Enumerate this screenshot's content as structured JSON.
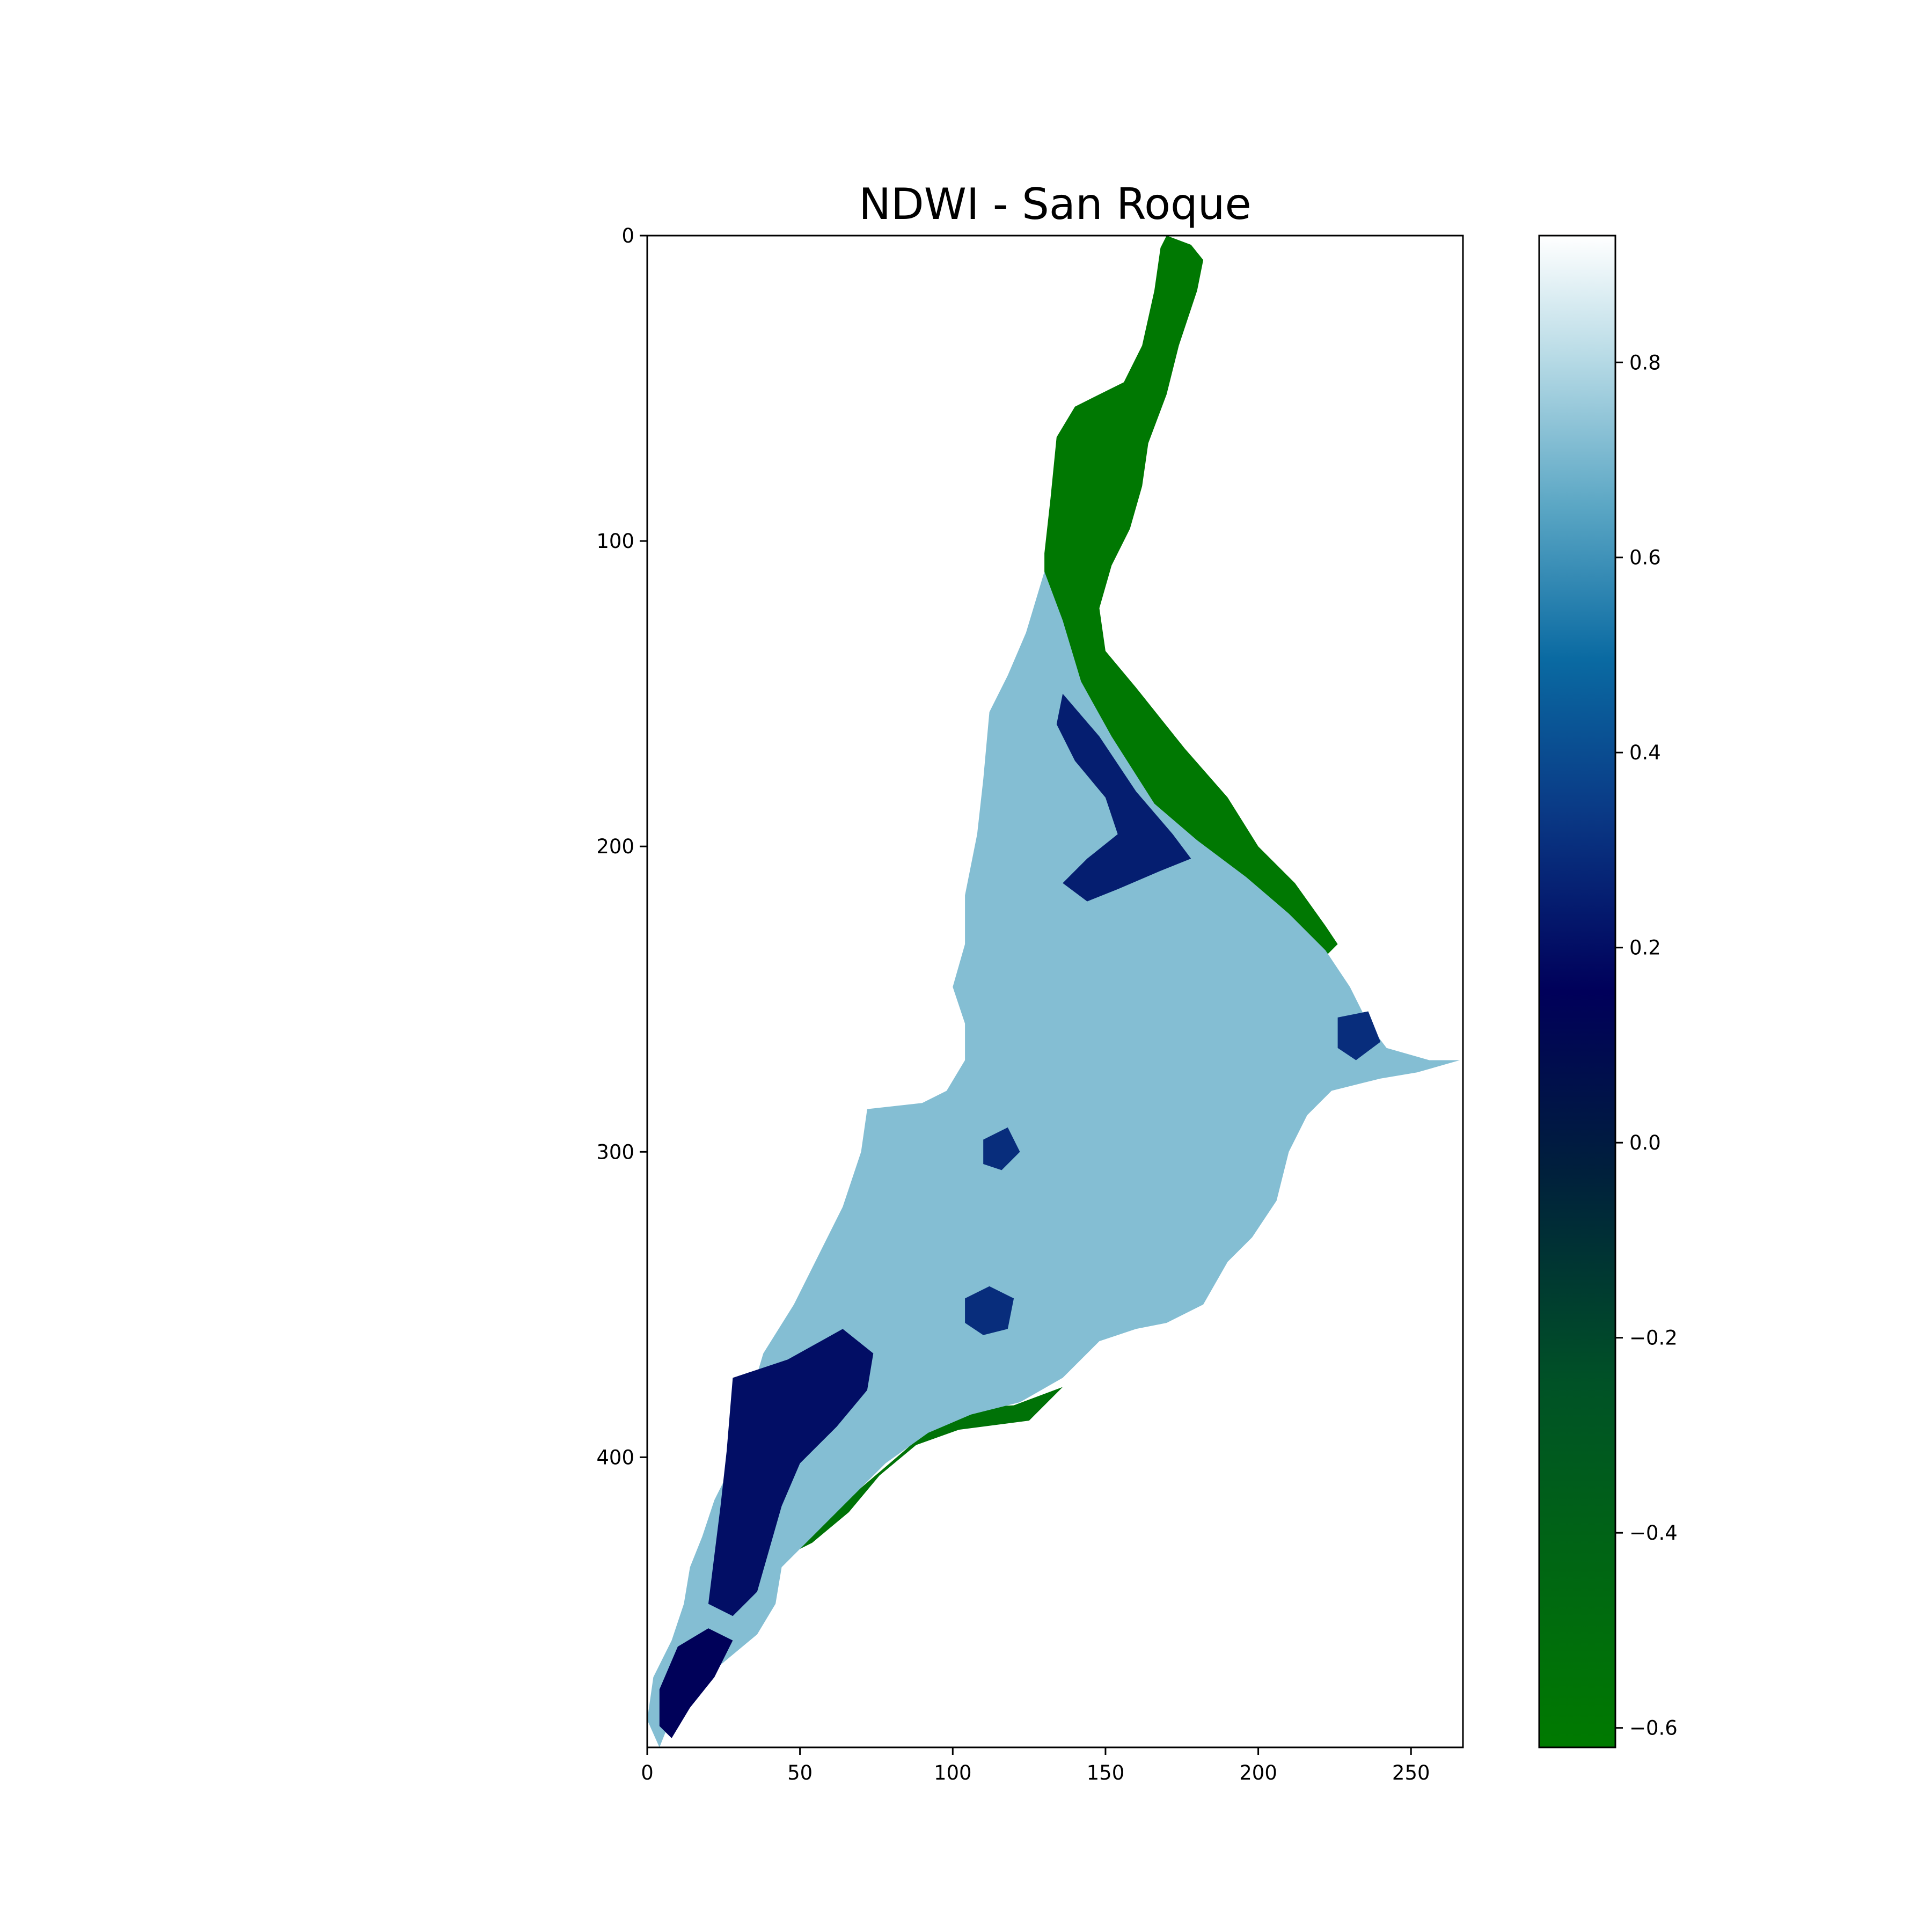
{
  "chart_data": {
    "type": "heatmap",
    "title": "NDWI - San Roque",
    "xlabel": "",
    "ylabel": "",
    "xlim": [
      0,
      267
    ],
    "ylim": [
      495,
      0
    ],
    "x_ticks": [
      0,
      50,
      100,
      150,
      200,
      250
    ],
    "y_ticks": [
      0,
      100,
      200,
      300,
      400
    ],
    "colormap": {
      "name": "ocean",
      "vmin": -0.62,
      "vmax": 0.93,
      "ticks": [
        -0.6,
        -0.4,
        -0.2,
        0.0,
        0.2,
        0.4,
        0.6,
        0.8
      ],
      "tick_labels": [
        "−0.6",
        "−0.4",
        "−0.2",
        "0.0",
        "0.2",
        "0.4",
        "0.6",
        "0.8"
      ]
    },
    "colors": {
      "low": "#007a00",
      "mid_low": "#002a3a",
      "zero": "#000060",
      "mid": "#0a5a9a",
      "high": "#cde6ef",
      "max": "#ffffff"
    },
    "regions": [
      {
        "name": "river channel (vegetation/land, low NDWI)",
        "value": -0.6,
        "polygon": [
          [
            170,
            0
          ],
          [
            178,
            3
          ],
          [
            182,
            8
          ],
          [
            180,
            18
          ],
          [
            174,
            36
          ],
          [
            170,
            52
          ],
          [
            164,
            68
          ],
          [
            162,
            82
          ],
          [
            158,
            96
          ],
          [
            152,
            108
          ],
          [
            148,
            122
          ],
          [
            150,
            136
          ],
          [
            160,
            148
          ],
          [
            176,
            168
          ],
          [
            190,
            184
          ],
          [
            200,
            200
          ],
          [
            212,
            212
          ],
          [
            222,
            226
          ],
          [
            226,
            232
          ],
          [
            220,
            238
          ],
          [
            206,
            226
          ],
          [
            196,
            214
          ],
          [
            186,
            204
          ],
          [
            176,
            196
          ],
          [
            166,
            190
          ],
          [
            152,
            176
          ],
          [
            142,
            160
          ],
          [
            134,
            142
          ],
          [
            130,
            122
          ],
          [
            130,
            104
          ],
          [
            132,
            86
          ],
          [
            134,
            66
          ],
          [
            140,
            56
          ],
          [
            148,
            52
          ],
          [
            156,
            48
          ],
          [
            162,
            36
          ],
          [
            166,
            18
          ],
          [
            168,
            4
          ]
        ]
      },
      {
        "name": "south shore (land, low NDWI)",
        "value": -0.55,
        "polygon": [
          [
            100,
            384
          ],
          [
            120,
            383
          ],
          [
            136,
            377
          ],
          [
            125,
            388
          ],
          [
            102,
            391
          ],
          [
            88,
            396
          ],
          [
            76,
            406
          ],
          [
            66,
            418
          ],
          [
            54,
            428
          ],
          [
            46,
            432
          ],
          [
            56,
            422
          ],
          [
            70,
            410
          ],
          [
            84,
            398
          ]
        ]
      },
      {
        "name": "reservoir body (water, high NDWI)",
        "value": 0.72,
        "polygon": [
          [
            130,
            110
          ],
          [
            136,
            126
          ],
          [
            142,
            146
          ],
          [
            152,
            164
          ],
          [
            166,
            186
          ],
          [
            180,
            198
          ],
          [
            196,
            210
          ],
          [
            210,
            222
          ],
          [
            222,
            234
          ],
          [
            230,
            246
          ],
          [
            236,
            258
          ],
          [
            242,
            266
          ],
          [
            256,
            270
          ],
          [
            266,
            270
          ],
          [
            252,
            274
          ],
          [
            240,
            276
          ],
          [
            224,
            280
          ],
          [
            216,
            288
          ],
          [
            210,
            300
          ],
          [
            206,
            316
          ],
          [
            198,
            328
          ],
          [
            190,
            336
          ],
          [
            182,
            350
          ],
          [
            170,
            356
          ],
          [
            160,
            358
          ],
          [
            148,
            362
          ],
          [
            136,
            374
          ],
          [
            122,
            382
          ],
          [
            106,
            386
          ],
          [
            92,
            392
          ],
          [
            78,
            402
          ],
          [
            66,
            414
          ],
          [
            52,
            428
          ],
          [
            44,
            436
          ],
          [
            42,
            448
          ],
          [
            36,
            458
          ],
          [
            24,
            468
          ],
          [
            12,
            480
          ],
          [
            6,
            490
          ],
          [
            4,
            495
          ],
          [
            0,
            486
          ],
          [
            2,
            472
          ],
          [
            8,
            460
          ],
          [
            12,
            448
          ],
          [
            14,
            436
          ],
          [
            18,
            426
          ],
          [
            22,
            414
          ],
          [
            28,
            402
          ],
          [
            32,
            386
          ],
          [
            38,
            366
          ],
          [
            48,
            350
          ],
          [
            56,
            334
          ],
          [
            64,
            318
          ],
          [
            70,
            300
          ],
          [
            72,
            286
          ],
          [
            90,
            284
          ],
          [
            98,
            280
          ],
          [
            104,
            270
          ],
          [
            104,
            258
          ],
          [
            100,
            246
          ],
          [
            104,
            232
          ],
          [
            104,
            216
          ],
          [
            108,
            196
          ],
          [
            110,
            178
          ],
          [
            112,
            156
          ],
          [
            118,
            144
          ],
          [
            124,
            130
          ]
        ]
      },
      {
        "name": "upper channel shallows (medium NDWI)",
        "value": 0.25,
        "polygon": [
          [
            136,
            150
          ],
          [
            148,
            164
          ],
          [
            160,
            182
          ],
          [
            172,
            196
          ],
          [
            178,
            204
          ],
          [
            168,
            208
          ],
          [
            154,
            214
          ],
          [
            144,
            218
          ],
          [
            136,
            212
          ],
          [
            144,
            204
          ],
          [
            154,
            196
          ],
          [
            150,
            184
          ],
          [
            140,
            172
          ],
          [
            134,
            160
          ]
        ]
      },
      {
        "name": "southwest shallows (medium NDWI)",
        "value": 0.2,
        "polygon": [
          [
            28,
            374
          ],
          [
            46,
            368
          ],
          [
            64,
            358
          ],
          [
            74,
            366
          ],
          [
            72,
            378
          ],
          [
            62,
            390
          ],
          [
            50,
            402
          ],
          [
            44,
            416
          ],
          [
            40,
            430
          ],
          [
            36,
            444
          ],
          [
            28,
            452
          ],
          [
            20,
            448
          ],
          [
            22,
            432
          ],
          [
            24,
            416
          ],
          [
            26,
            398
          ]
        ]
      },
      {
        "name": "southwest tip (medium NDWI)",
        "value": 0.15,
        "polygon": [
          [
            10,
            462
          ],
          [
            20,
            456
          ],
          [
            28,
            460
          ],
          [
            22,
            472
          ],
          [
            14,
            482
          ],
          [
            8,
            492
          ],
          [
            4,
            488
          ],
          [
            4,
            476
          ]
        ]
      },
      {
        "name": "central patch A",
        "value": 0.3,
        "polygon": [
          [
            104,
            348
          ],
          [
            112,
            344
          ],
          [
            120,
            348
          ],
          [
            118,
            358
          ],
          [
            110,
            360
          ],
          [
            104,
            356
          ]
        ]
      },
      {
        "name": "central patch B",
        "value": 0.3,
        "polygon": [
          [
            110,
            296
          ],
          [
            118,
            292
          ],
          [
            122,
            300
          ],
          [
            116,
            306
          ],
          [
            110,
            304
          ]
        ]
      },
      {
        "name": "east patch",
        "value": 0.3,
        "polygon": [
          [
            226,
            256
          ],
          [
            236,
            254
          ],
          [
            240,
            264
          ],
          [
            232,
            270
          ],
          [
            226,
            266
          ]
        ]
      }
    ]
  }
}
